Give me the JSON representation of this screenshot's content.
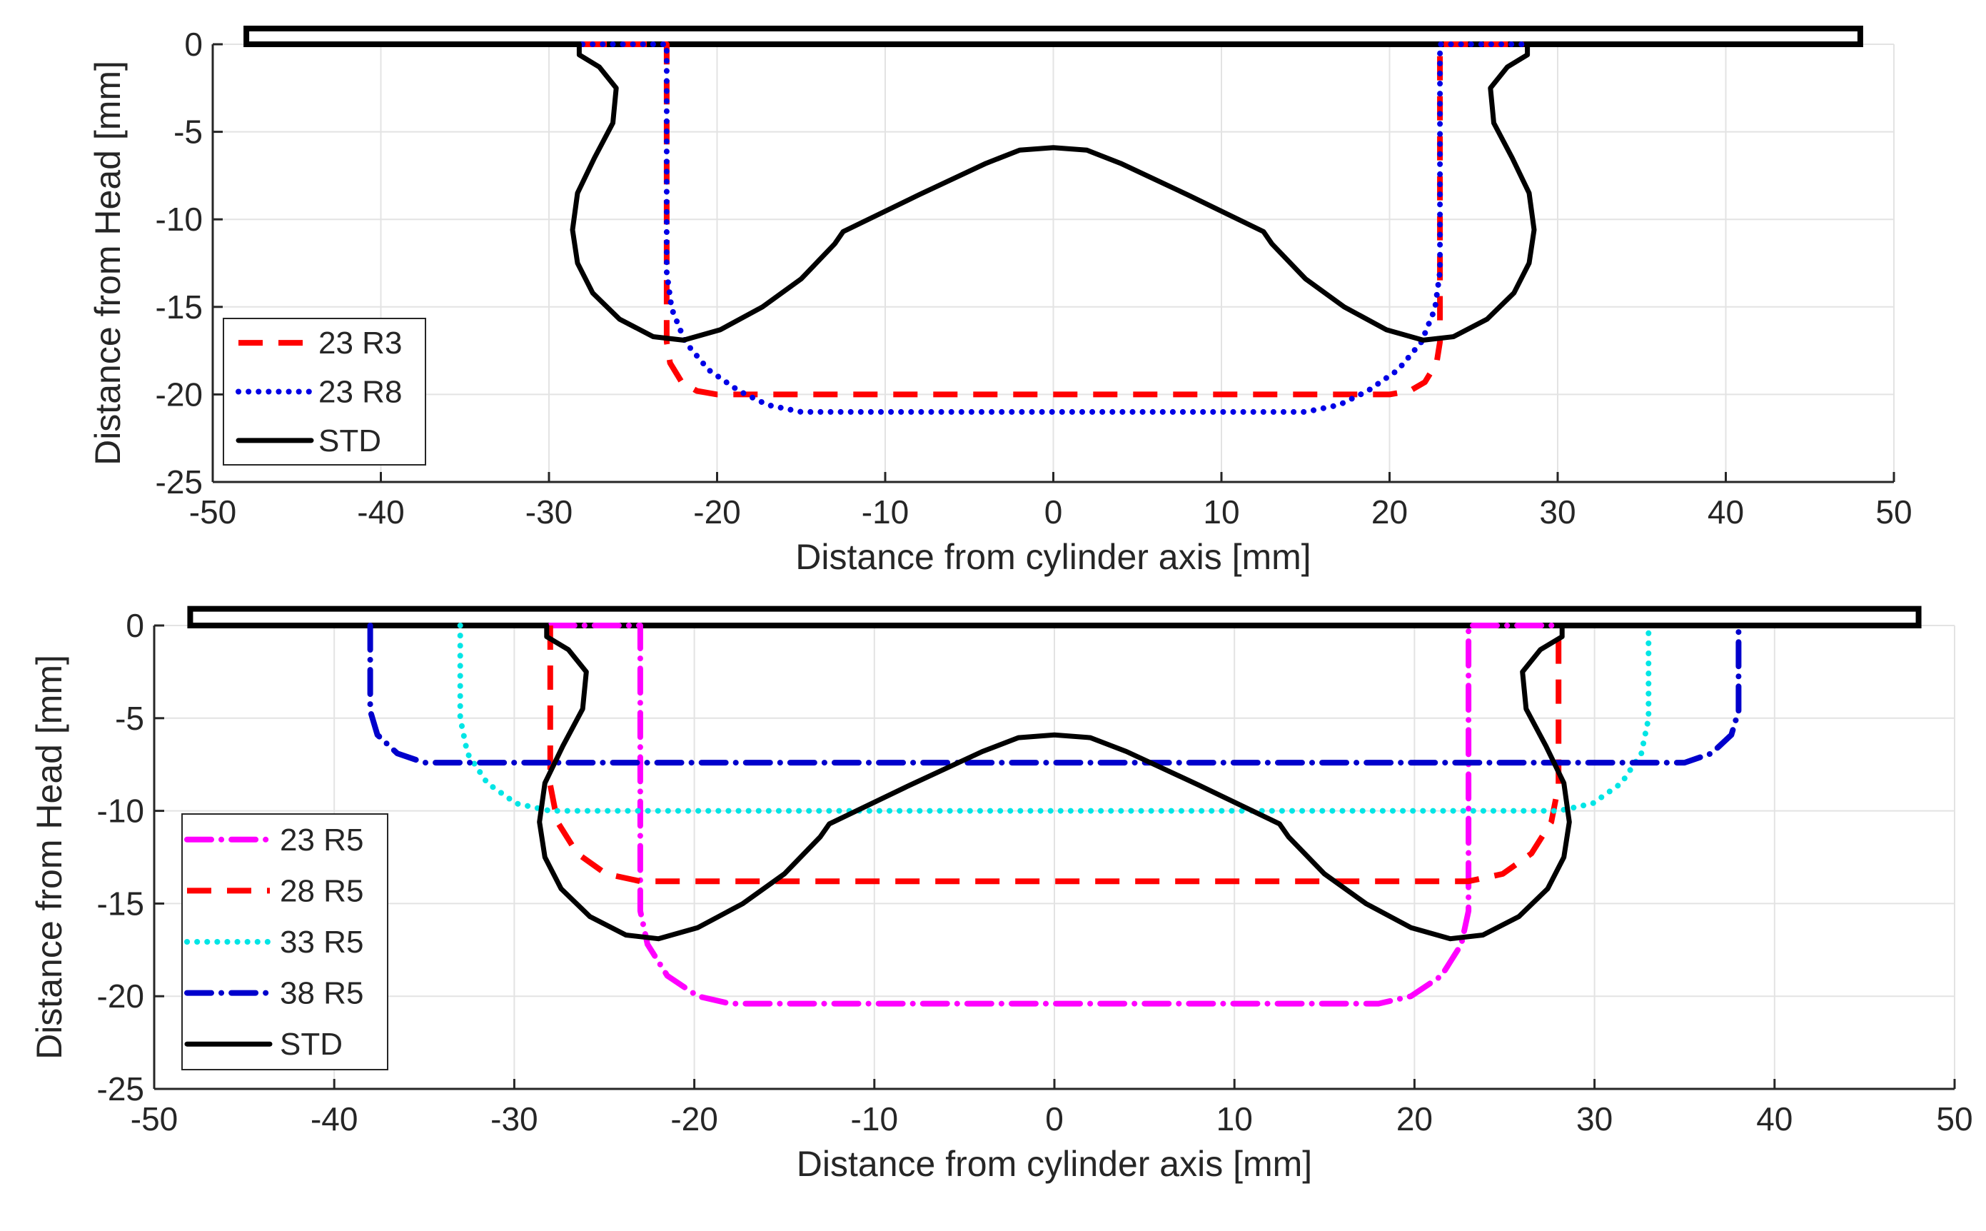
{
  "chart_data": [
    {
      "type": "line",
      "title": "",
      "xlabel": "Distance from cylinder axis [mm]",
      "ylabel": "Distance from Head [mm]",
      "xlim": [
        -50,
        50
      ],
      "ylim": [
        -25,
        0
      ],
      "xticks": [
        -50,
        -40,
        -30,
        -20,
        -10,
        0,
        10,
        20,
        30,
        40,
        50
      ],
      "yticks": [
        0,
        -5,
        -10,
        -15,
        -20,
        -25
      ],
      "grid": true,
      "legend_position": "bottom-left",
      "head": {
        "name": "cylinder-head",
        "x_range": [
          -48,
          48
        ],
        "y_range": [
          0,
          0.9
        ]
      },
      "series": [
        {
          "name": "23 R3",
          "color": "#ff0000",
          "dash": "dashed",
          "points": [
            [
              -28,
              0
            ],
            [
              -23,
              0
            ],
            [
              -23,
              -17
            ],
            [
              -22.8,
              -18.2
            ],
            [
              -22.1,
              -19.3
            ],
            [
              -21.2,
              -19.8
            ],
            [
              -20,
              -20
            ],
            [
              20,
              -20
            ],
            [
              21.2,
              -19.8
            ],
            [
              22.1,
              -19.3
            ],
            [
              22.8,
              -18.2
            ],
            [
              23,
              -17
            ],
            [
              23,
              0
            ],
            [
              28,
              0
            ]
          ]
        },
        {
          "name": "23 R8",
          "color": "#0000e6",
          "dash": "dotted",
          "points": [
            [
              -28,
              0
            ],
            [
              -23,
              0
            ],
            [
              -23,
              -13
            ],
            [
              -22.7,
              -15.1
            ],
            [
              -21.9,
              -17
            ],
            [
              -20.5,
              -18.6
            ],
            [
              -18.7,
              -19.8
            ],
            [
              -17,
              -20.6
            ],
            [
              -15,
              -21
            ],
            [
              15,
              -21
            ],
            [
              17,
              -20.6
            ],
            [
              18.7,
              -19.8
            ],
            [
              20.5,
              -18.6
            ],
            [
              21.9,
              -17
            ],
            [
              22.7,
              -15.1
            ],
            [
              23,
              -13
            ],
            [
              23,
              0
            ],
            [
              28,
              0
            ]
          ]
        },
        {
          "name": "STD",
          "color": "#000000",
          "dash": "solid",
          "points": [
            [
              -28.2,
              0
            ],
            [
              -28.2,
              -0.6
            ],
            [
              -27,
              -1.3
            ],
            [
              -26,
              -2.5
            ],
            [
              -26.2,
              -4.5
            ],
            [
              -27.3,
              -6.5
            ],
            [
              -28.3,
              -8.5
            ],
            [
              -28.6,
              -10.6
            ],
            [
              -28.3,
              -12.5
            ],
            [
              -27.4,
              -14.2
            ],
            [
              -25.8,
              -15.7
            ],
            [
              -23.8,
              -16.7
            ],
            [
              -22,
              -16.9
            ],
            [
              -19.8,
              -16.3
            ],
            [
              -17.3,
              -15
            ],
            [
              -15,
              -13.4
            ],
            [
              -13,
              -11.4
            ],
            [
              -12.5,
              -10.7
            ],
            [
              -8,
              -8.6
            ],
            [
              -4,
              -6.8
            ],
            [
              -2,
              -6.05
            ],
            [
              0,
              -5.9
            ],
            [
              2,
              -6.05
            ],
            [
              4,
              -6.8
            ],
            [
              8,
              -8.6
            ],
            [
              12.5,
              -10.7
            ],
            [
              13,
              -11.4
            ],
            [
              15,
              -13.4
            ],
            [
              17.3,
              -15
            ],
            [
              19.8,
              -16.3
            ],
            [
              22,
              -16.9
            ],
            [
              23.8,
              -16.7
            ],
            [
              25.8,
              -15.7
            ],
            [
              27.4,
              -14.2
            ],
            [
              28.3,
              -12.5
            ],
            [
              28.6,
              -10.6
            ],
            [
              28.3,
              -8.5
            ],
            [
              27.3,
              -6.5
            ],
            [
              26.2,
              -4.5
            ],
            [
              26,
              -2.5
            ],
            [
              27,
              -1.3
            ],
            [
              28.2,
              -0.6
            ],
            [
              28.2,
              0
            ]
          ]
        }
      ]
    },
    {
      "type": "line",
      "title": "",
      "xlabel": "Distance from cylinder axis [mm]",
      "ylabel": "Distance from Head [mm]",
      "xlim": [
        -50,
        50
      ],
      "ylim": [
        -25,
        0
      ],
      "xticks": [
        -50,
        -40,
        -30,
        -20,
        -10,
        0,
        10,
        20,
        30,
        40,
        50
      ],
      "yticks": [
        0,
        -5,
        -10,
        -15,
        -20,
        -25
      ],
      "grid": true,
      "legend_position": "bottom-left",
      "head": {
        "name": "cylinder-head",
        "x_range": [
          -48,
          48
        ],
        "y_range": [
          0,
          0.9
        ]
      },
      "series": [
        {
          "name": "23 R5",
          "color": "#ff00ff",
          "dash": "dashdot",
          "points": [
            [
              -28,
              0
            ],
            [
              -23,
              0
            ],
            [
              -23,
              -15.4
            ],
            [
              -22.6,
              -17.2
            ],
            [
              -21.5,
              -18.9
            ],
            [
              -19.8,
              -20
            ],
            [
              -18,
              -20.4
            ],
            [
              18,
              -20.4
            ],
            [
              19.8,
              -20
            ],
            [
              21.5,
              -18.9
            ],
            [
              22.6,
              -17.2
            ],
            [
              23,
              -15.4
            ],
            [
              23,
              0
            ],
            [
              28,
              0
            ]
          ]
        },
        {
          "name": "28 R5",
          "color": "#ff0000",
          "dash": "dashed",
          "points": [
            [
              -28,
              0
            ],
            [
              -28,
              -8.6
            ],
            [
              -27.6,
              -10.6
            ],
            [
              -26.5,
              -12.3
            ],
            [
              -24.9,
              -13.4
            ],
            [
              -23,
              -13.8
            ],
            [
              23,
              -13.8
            ],
            [
              24.9,
              -13.4
            ],
            [
              26.5,
              -12.3
            ],
            [
              27.6,
              -10.6
            ],
            [
              28,
              -8.6
            ],
            [
              28,
              0
            ]
          ]
        },
        {
          "name": "33 R5",
          "color": "#00e5e5",
          "dash": "dotted",
          "points": [
            [
              -33,
              0
            ],
            [
              -33,
              -5
            ],
            [
              -32.6,
              -6.9
            ],
            [
              -31.5,
              -8.5
            ],
            [
              -29.9,
              -9.6
            ],
            [
              -28,
              -10
            ],
            [
              28,
              -10
            ],
            [
              29.9,
              -9.6
            ],
            [
              31.5,
              -8.5
            ],
            [
              32.6,
              -6.9
            ],
            [
              33,
              -5
            ],
            [
              33,
              0
            ]
          ]
        },
        {
          "name": "38 R5",
          "color": "#0000cc",
          "dash": "dashdot",
          "points": [
            [
              -38,
              0
            ],
            [
              -38,
              -4.6
            ],
            [
              -37.6,
              -5.9
            ],
            [
              -36.5,
              -6.9
            ],
            [
              -35,
              -7.4
            ],
            [
              35,
              -7.4
            ],
            [
              36.5,
              -6.9
            ],
            [
              37.6,
              -5.9
            ],
            [
              38,
              -4.6
            ],
            [
              38,
              0
            ]
          ]
        },
        {
          "name": "STD",
          "color": "#000000",
          "dash": "solid",
          "points": [
            [
              -28.2,
              0
            ],
            [
              -28.2,
              -0.6
            ],
            [
              -27,
              -1.3
            ],
            [
              -26,
              -2.5
            ],
            [
              -26.2,
              -4.5
            ],
            [
              -27.3,
              -6.5
            ],
            [
              -28.3,
              -8.5
            ],
            [
              -28.6,
              -10.6
            ],
            [
              -28.3,
              -12.5
            ],
            [
              -27.4,
              -14.2
            ],
            [
              -25.8,
              -15.7
            ],
            [
              -23.8,
              -16.7
            ],
            [
              -22,
              -16.9
            ],
            [
              -19.8,
              -16.3
            ],
            [
              -17.3,
              -15
            ],
            [
              -15,
              -13.4
            ],
            [
              -13,
              -11.4
            ],
            [
              -12.5,
              -10.7
            ],
            [
              -8,
              -8.6
            ],
            [
              -4,
              -6.8
            ],
            [
              -2,
              -6.05
            ],
            [
              0,
              -5.9
            ],
            [
              2,
              -6.05
            ],
            [
              4,
              -6.8
            ],
            [
              8,
              -8.6
            ],
            [
              12.5,
              -10.7
            ],
            [
              13,
              -11.4
            ],
            [
              15,
              -13.4
            ],
            [
              17.3,
              -15
            ],
            [
              19.8,
              -16.3
            ],
            [
              22,
              -16.9
            ],
            [
              23.8,
              -16.7
            ],
            [
              25.8,
              -15.7
            ],
            [
              27.4,
              -14.2
            ],
            [
              28.3,
              -12.5
            ],
            [
              28.6,
              -10.6
            ],
            [
              28.3,
              -8.5
            ],
            [
              27.3,
              -6.5
            ],
            [
              26.2,
              -4.5
            ],
            [
              26,
              -2.5
            ],
            [
              27,
              -1.3
            ],
            [
              28.2,
              -0.6
            ],
            [
              28.2,
              0
            ]
          ]
        }
      ]
    }
  ]
}
